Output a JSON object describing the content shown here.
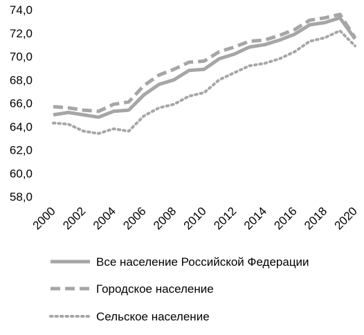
{
  "chart_data": {
    "type": "line",
    "title": "",
    "xlabel": "",
    "ylabel": "",
    "x": [
      2000,
      2001,
      2002,
      2003,
      2004,
      2005,
      2006,
      2007,
      2008,
      2009,
      2010,
      2011,
      2012,
      2013,
      2014,
      2015,
      2016,
      2017,
      2018,
      2019,
      2020
    ],
    "xticks": [
      "2000",
      "2002",
      "2004",
      "2006",
      "2008",
      "2010",
      "2012",
      "2014",
      "2016",
      "2018",
      "2020"
    ],
    "yticks": [
      "58,0",
      "60,0",
      "62,0",
      "64,0",
      "66,0",
      "68,0",
      "70,0",
      "72,0",
      "74,0"
    ],
    "ylim": [
      58,
      74
    ],
    "grid": false,
    "legend_position": "bottom",
    "series": [
      {
        "name": "Все население Российской Федерации",
        "style": "solid",
        "color": "#a6a6a6",
        "values": [
          65.0,
          65.2,
          65.0,
          64.8,
          65.3,
          65.4,
          66.7,
          67.6,
          68.0,
          68.8,
          68.9,
          69.8,
          70.2,
          70.8,
          71.0,
          71.4,
          71.9,
          72.7,
          72.9,
          73.3,
          71.5
        ]
      },
      {
        "name": "Городское население",
        "style": "dashed",
        "color": "#a6a6a6",
        "values": [
          65.7,
          65.6,
          65.4,
          65.3,
          65.9,
          66.1,
          67.5,
          68.4,
          68.9,
          69.5,
          69.6,
          70.4,
          70.8,
          71.3,
          71.4,
          71.8,
          72.3,
          73.1,
          73.3,
          73.6,
          71.6
        ]
      },
      {
        "name": "Сельское население",
        "style": "dotted",
        "color": "#a6a6a6",
        "values": [
          64.3,
          64.2,
          63.6,
          63.4,
          63.8,
          63.6,
          64.9,
          65.6,
          65.9,
          66.6,
          66.9,
          68.0,
          68.6,
          69.2,
          69.4,
          69.8,
          70.4,
          71.3,
          71.6,
          72.2,
          70.9
        ]
      }
    ]
  }
}
